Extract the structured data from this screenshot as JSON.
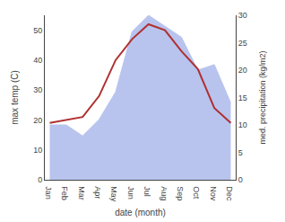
{
  "chart_data": {
    "type": "line",
    "categories": [
      "Jan",
      "Feb",
      "Mar",
      "Apr",
      "May",
      "Jun",
      "Jul",
      "Aug",
      "Sep",
      "Oct",
      "Nov",
      "Dec"
    ],
    "xlabel": "date (month)",
    "ylabel": "max temp (C)",
    "y2label": "med. precipitation (kg/m2)",
    "ylim": [
      0,
      55
    ],
    "yticks": [
      0,
      10,
      20,
      30,
      40,
      50
    ],
    "y2lim": [
      0,
      30
    ],
    "y2ticks": [
      0,
      5,
      10,
      15,
      20,
      25,
      30
    ],
    "grid": false,
    "series": [
      {
        "type": "area",
        "axis": "y2",
        "color": "#b8c4ee",
        "values": [
          10,
          10,
          8,
          11,
          16,
          27,
          30,
          28,
          26,
          20,
          21,
          14
        ]
      },
      {
        "type": "line",
        "color": "#b03030",
        "values": [
          19,
          20,
          21,
          28,
          40,
          47,
          52,
          50,
          43,
          37,
          24,
          19
        ]
      }
    ]
  }
}
